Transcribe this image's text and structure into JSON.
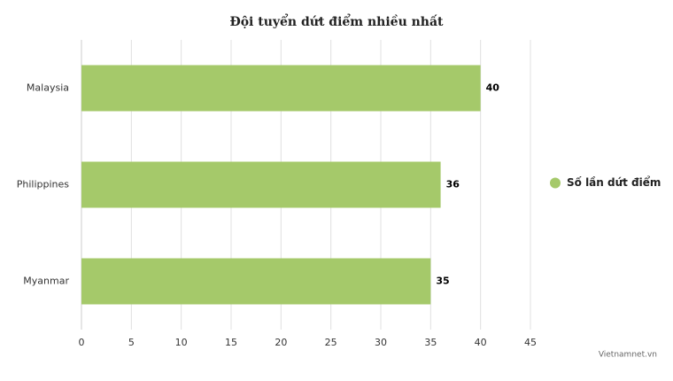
{
  "chart_data": {
    "type": "bar",
    "orientation": "horizontal",
    "title": "Đội tuyển dứt điểm nhiều nhất",
    "categories": [
      "Malaysia",
      "Philippines",
      "Myanmar"
    ],
    "series": [
      {
        "name": "Số lần dứt điểm",
        "color": "#a5c96a",
        "values": [
          40,
          36,
          35
        ]
      }
    ],
    "xlim": [
      0,
      45
    ],
    "xticks": [
      0,
      5,
      10,
      15,
      20,
      25,
      30,
      35,
      40,
      45
    ],
    "grid": true,
    "legend": "right",
    "credit": "Vietnamnet.vn"
  }
}
